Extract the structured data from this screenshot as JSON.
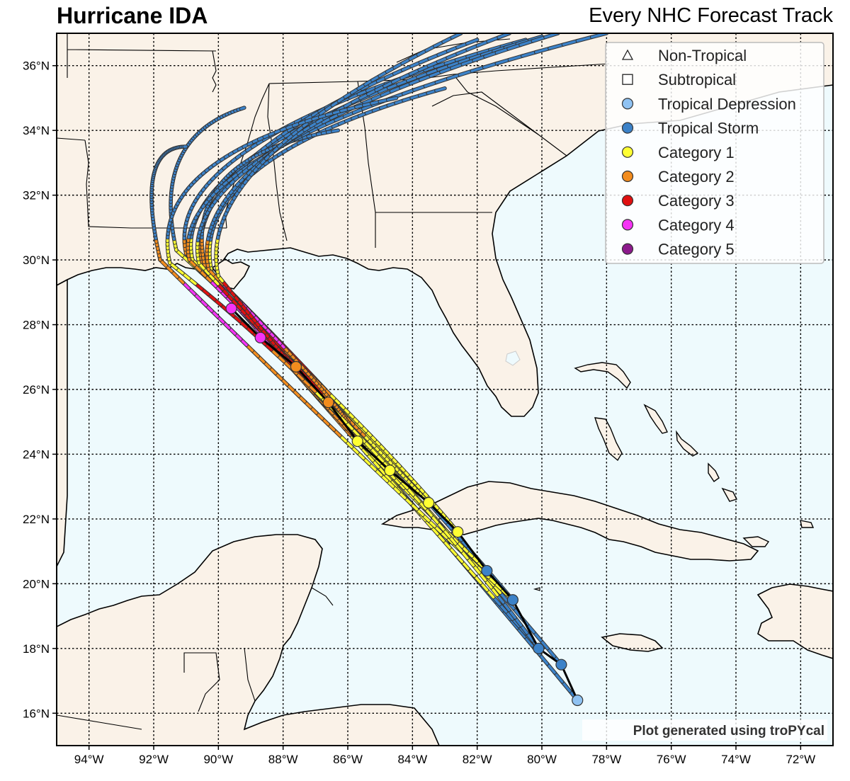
{
  "title": "Hurricane IDA",
  "subtitle": "Every NHC Forecast Track",
  "credit": "Plot generated using troPYcal",
  "map": {
    "lon_range": [
      -95,
      -71
    ],
    "lat_range": [
      15,
      37
    ],
    "lon_ticks": [
      "94°W",
      "92°W",
      "90°W",
      "88°W",
      "86°W",
      "84°W",
      "82°W",
      "80°W",
      "78°W",
      "76°W",
      "74°W",
      "72°W"
    ],
    "lat_ticks": [
      "16°N",
      "18°N",
      "20°N",
      "22°N",
      "24°N",
      "26°N",
      "28°N",
      "30°N",
      "32°N",
      "34°N",
      "36°N"
    ],
    "colors": {
      "land": "#faf2e8",
      "ocean": "#eefafd",
      "grid": "#000000"
    }
  },
  "legend": {
    "placement": "top-right",
    "items": [
      {
        "label": "Non-Tropical",
        "marker": "triangle",
        "color": "#ffffff"
      },
      {
        "label": "Subtropical",
        "marker": "square",
        "color": "#ffffff"
      },
      {
        "label": "Tropical Depression",
        "marker": "circle",
        "color": "#8fc2f2"
      },
      {
        "label": "Tropical Storm",
        "marker": "circle",
        "color": "#3c82c8"
      },
      {
        "label": "Category 1",
        "marker": "circle",
        "color": "#ffff33"
      },
      {
        "label": "Category 2",
        "marker": "circle",
        "color": "#f28c1e"
      },
      {
        "label": "Category 3",
        "marker": "circle",
        "color": "#e01010"
      },
      {
        "label": "Category 4",
        "marker": "circle",
        "color": "#f533f5"
      },
      {
        "label": "Category 5",
        "marker": "circle",
        "color": "#8c1a8c"
      }
    ]
  },
  "observed_track": [
    {
      "lon": -78.9,
      "lat": 16.4,
      "category": "Tropical Depression"
    },
    {
      "lon": -79.4,
      "lat": 17.5,
      "category": "Tropical Storm"
    },
    {
      "lon": -80.1,
      "lat": 18.0,
      "category": "Tropical Storm"
    },
    {
      "lon": -80.9,
      "lat": 19.5,
      "category": "Tropical Storm"
    },
    {
      "lon": -81.7,
      "lat": 20.4,
      "category": "Tropical Storm"
    },
    {
      "lon": -82.6,
      "lat": 21.6,
      "category": "Category 1"
    },
    {
      "lon": -83.5,
      "lat": 22.5,
      "category": "Category 1"
    },
    {
      "lon": -84.7,
      "lat": 23.5,
      "category": "Category 1"
    },
    {
      "lon": -85.7,
      "lat": 24.4,
      "category": "Category 1"
    },
    {
      "lon": -86.6,
      "lat": 25.6,
      "category": "Category 2"
    },
    {
      "lon": -87.6,
      "lat": 26.7,
      "category": "Category 2"
    },
    {
      "lon": -88.7,
      "lat": 27.6,
      "category": "Category 4"
    },
    {
      "lon": -89.6,
      "lat": 28.5,
      "category": "Category 4"
    }
  ]
}
